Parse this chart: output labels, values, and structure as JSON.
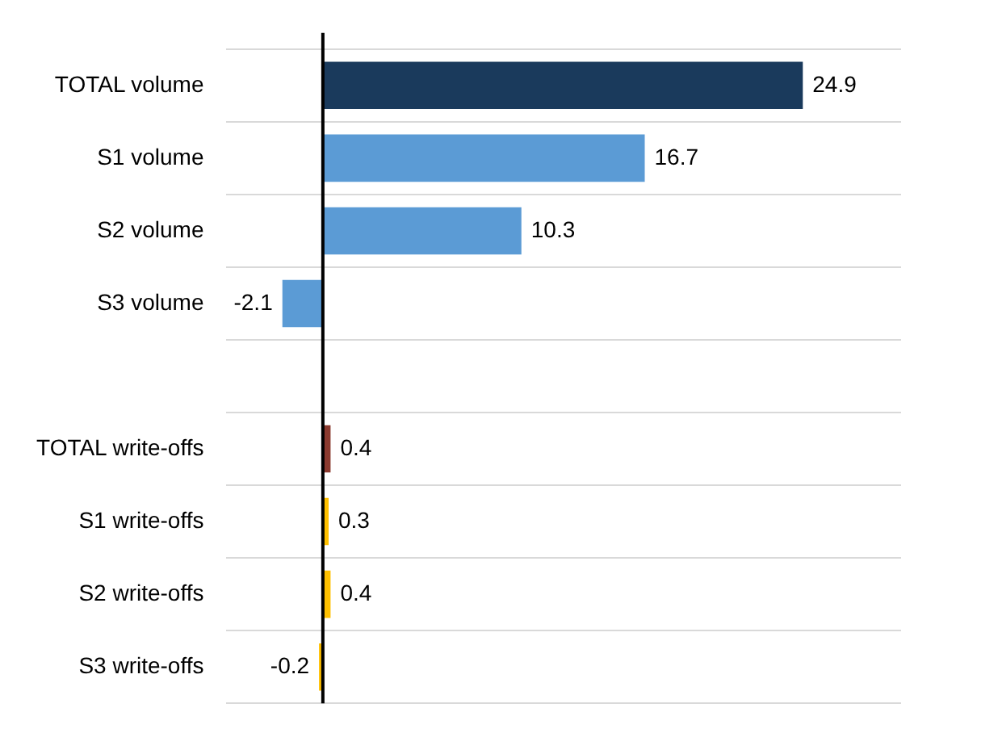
{
  "chart_data": {
    "type": "bar",
    "orientation": "horizontal",
    "categories": [
      "TOTAL volume",
      "S1 volume",
      "S2 volume",
      "S3 volume",
      null,
      "TOTAL write-offs",
      "S1 write-offs",
      "S2 write-offs",
      "S3 write-offs"
    ],
    "values": [
      24.9,
      16.7,
      10.3,
      -2.1,
      null,
      0.4,
      0.3,
      0.4,
      -0.2
    ],
    "colors": [
      "#1a3a5c",
      "#5b9bd5",
      "#5b9bd5",
      "#5b9bd5",
      "#5b9bd5",
      "#8b3a2f",
      "#ffc000",
      "#ffc000",
      "#ffc000"
    ],
    "data_labels": true,
    "grid": "y",
    "legend": false
  }
}
